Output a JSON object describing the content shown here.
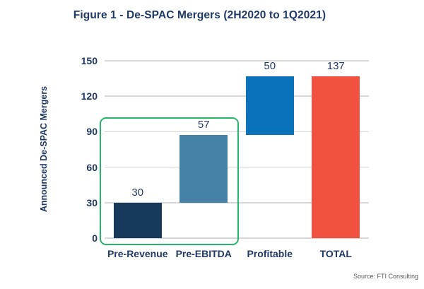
{
  "title": "Figure 1 - De-SPAC Mergers (2H2020 to 1Q2021)",
  "source": "Source: FTI Consulting",
  "colors": {
    "title_navy": "#1F3864",
    "gridline": "#D6D6D6",
    "highlight_green": "#28B46A",
    "source_gray": "#57585A"
  },
  "chart_data": {
    "type": "bar",
    "subtype": "waterfall",
    "title": "Figure 1 - De-SPAC Mergers (2H2020 to 1Q2021)",
    "xlabel": "",
    "ylabel": "Announced De-SPAC Mergers",
    "ylim": [
      0,
      150
    ],
    "yticks": [
      0,
      30,
      60,
      90,
      120,
      150
    ],
    "grid": true,
    "legend": false,
    "categories": [
      "Pre-Revenue",
      "Pre-EBITDA",
      "Profitable",
      "TOTAL"
    ],
    "series": [
      {
        "name": "Announced De-SPAC Mergers",
        "values": [
          30,
          57,
          50,
          137
        ]
      }
    ],
    "bars": [
      {
        "category": "Pre-Revenue",
        "value": 30,
        "base": 0,
        "top": 30,
        "label": "30",
        "color": "#17395C"
      },
      {
        "category": "Pre-EBITDA",
        "value": 57,
        "base": 30,
        "top": 87,
        "label": "57",
        "color": "#4682A8"
      },
      {
        "category": "Profitable",
        "value": 50,
        "base": 87,
        "top": 137,
        "label": "50",
        "color": "#0A72B9"
      },
      {
        "category": "TOTAL",
        "value": 137,
        "base": 0,
        "top": 137,
        "label": "137",
        "color": "#F0523F"
      }
    ],
    "highlight_box": {
      "around_categories": [
        "Pre-Revenue",
        "Pre-EBITDA"
      ],
      "color": "#28B46A"
    }
  }
}
